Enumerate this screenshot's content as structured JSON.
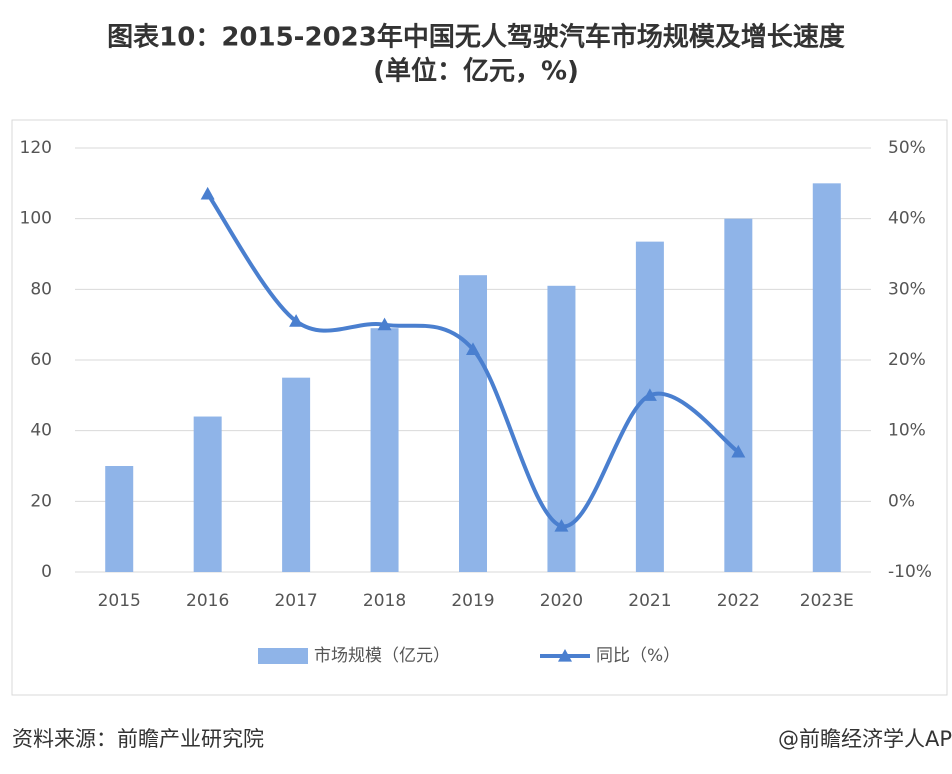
{
  "chart_data": {
    "type": "bar_line",
    "title": "图表10：2015-2023年中国无人驾驶汽车市场规模及增长速度",
    "subtitle": "(单位：亿元，%)",
    "categories": [
      "2015",
      "2016",
      "2017",
      "2018",
      "2019",
      "2020",
      "2021",
      "2022",
      "2023E"
    ],
    "series": [
      {
        "name": "市场规模（亿元）",
        "type": "bar",
        "color": "#8fb4e8",
        "values": [
          30,
          44,
          55,
          69,
          84,
          81,
          93.5,
          100,
          110
        ]
      },
      {
        "name": "同比（%）",
        "type": "line",
        "axis": "y2",
        "color": "#4a7fcf",
        "values": [
          null,
          43.5,
          25.5,
          25,
          21.5,
          -3.5,
          15,
          7,
          null
        ]
      }
    ],
    "ylim": [
      0,
      120
    ],
    "yticks": [
      0,
      20,
      40,
      60,
      80,
      100,
      120
    ],
    "y2lim": [
      -10,
      50
    ],
    "y2ticks": [
      {
        "value": -10,
        "label": "-10%"
      },
      {
        "value": 0,
        "label": "0%"
      },
      {
        "value": 10,
        "label": "10%"
      },
      {
        "value": 20,
        "label": "20%"
      },
      {
        "value": 30,
        "label": "30%"
      },
      {
        "value": 40,
        "label": "40%"
      },
      {
        "value": 50,
        "label": "50%"
      }
    ],
    "grid": true,
    "legend": "bottom",
    "source": "资料来源：前瞻产业研究院",
    "credit": "@前瞻经济学人AP"
  }
}
